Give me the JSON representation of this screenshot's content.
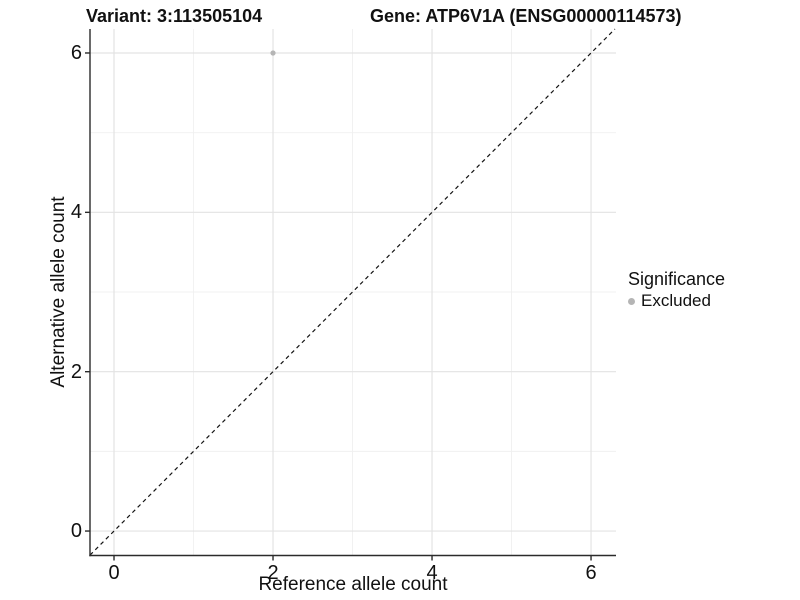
{
  "titles": {
    "left": "Variant: 3:113505104",
    "right": "Gene: ATP6V1A (ENSG00000114573)"
  },
  "legend": {
    "title": "Significance",
    "items": [
      {
        "label": "Excluded",
        "color": "#b5b5b5"
      }
    ]
  },
  "chart_data": {
    "type": "scatter",
    "title": "Variant: 3:113505104  Gene: ATP6V1A (ENSG00000114573)",
    "xlabel": "Reference allele count",
    "ylabel": "Alternative allele count",
    "x_ticks": [
      0,
      2,
      4,
      6
    ],
    "y_ticks": [
      0,
      2,
      4,
      6
    ],
    "x_minor_ticks": [
      1,
      3,
      5
    ],
    "y_minor_ticks": [
      1,
      3,
      5
    ],
    "xlim": [
      -0.302,
      6.314
    ],
    "ylim": [
      -0.307,
      6.301
    ],
    "grid": true,
    "legend_position": "right",
    "series": [
      {
        "name": "Excluded",
        "color": "#b5b5b5",
        "points": [
          {
            "x": 2,
            "y": 6
          }
        ]
      }
    ],
    "reference_line": {
      "kind": "abline",
      "slope": 1,
      "intercept": 0,
      "style": "dashed",
      "color": "#141414"
    },
    "colors": {
      "grid_major": "#e3e3e3",
      "grid_minor": "#f0f0f0",
      "axis_line": "#2b2b2b",
      "background": "#ffffff"
    }
  }
}
